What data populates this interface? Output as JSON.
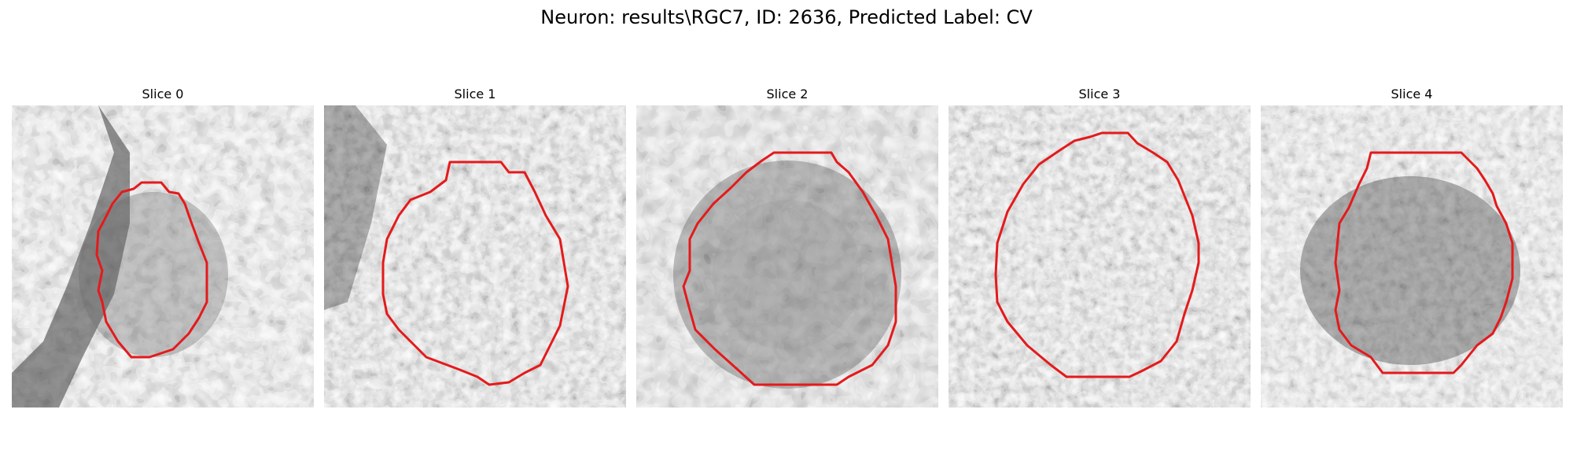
{
  "title": "Neuron: results\\RGC7, ID: 2636, Predicted Label: CV",
  "colors": {
    "contour": "#e41a1c",
    "background": "#ffffff",
    "text": "#000000"
  },
  "slices": [
    {
      "label": "Slice 0"
    },
    {
      "label": "Slice 1"
    },
    {
      "label": "Slice 2"
    },
    {
      "label": "Slice 3"
    },
    {
      "label": "Slice 4"
    }
  ]
}
